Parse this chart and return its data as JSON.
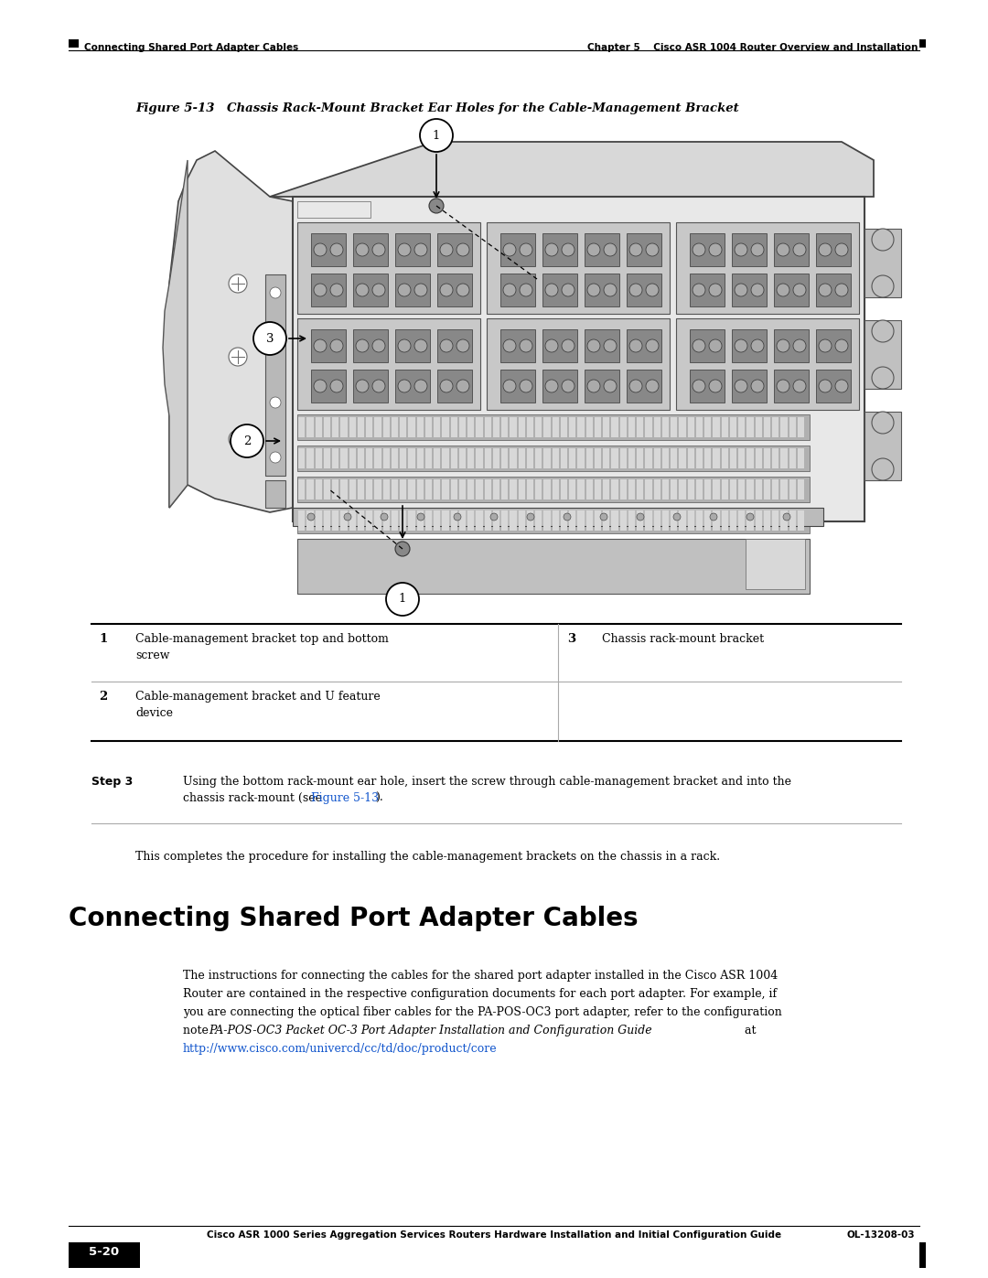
{
  "page_width": 10.8,
  "page_height": 13.97,
  "bg_color": "#ffffff",
  "header_chapter": "Chapter 5    Cisco ASR 1004 Router Overview and Installation",
  "header_section": "Connecting Shared Port Adapter Cables",
  "figure_title_bold": "Figure 5-13",
  "figure_caption": "Chassis Rack-Mount Bracket Ear Holes for the Cable-Management Bracket",
  "table_row1_num": "1",
  "table_row1_desc1": "Cable-management bracket top and bottom",
  "table_row1_desc2": "screw",
  "table_row1_num2": "3",
  "table_row1_desc3": "Chassis rack-mount bracket",
  "table_row2_num": "2",
  "table_row2_desc1": "Cable-management bracket and U feature",
  "table_row2_desc2": "device",
  "step3_label": "Step 3",
  "step3_line1": "Using the bottom rack-mount ear hole, insert the screw through cable-management bracket and into the",
  "step3_line2a": "chassis rack-mount (see ",
  "step3_link": "Figure 5-13",
  "step3_line2b": ").",
  "separator": "This completes the procedure for installing the cable-management brackets on the chassis in a rack.",
  "section_title": "Connecting Shared Port Adapter Cables",
  "body_line1": "The instructions for connecting the cables for the shared port adapter installed in the Cisco ASR 1004",
  "body_line2": "Router are contained in the respective configuration documents for each port adapter. For example, if",
  "body_line3": "you are connecting the optical fiber cables for the PA-POS-OC3 port adapter, refer to the configuration",
  "body_line4a": "note ",
  "body_line4b": "PA-POS-OC3 Packet OC-3 Port Adapter Installation and Configuration Guide",
  "body_line4c": " at",
  "body_line5": "http://www.cisco.com/univercd/cc/td/doc/product/core",
  "footer_center": "Cisco ASR 1000 Series Aggregation Services Routers Hardware Installation and Initial Configuration Guide",
  "footer_left": "5-20",
  "footer_right": "OL-13208-03",
  "link_color": "#1155CC",
  "black": "#000000",
  "mid_gray": "#888888",
  "light_gray": "#cccccc"
}
